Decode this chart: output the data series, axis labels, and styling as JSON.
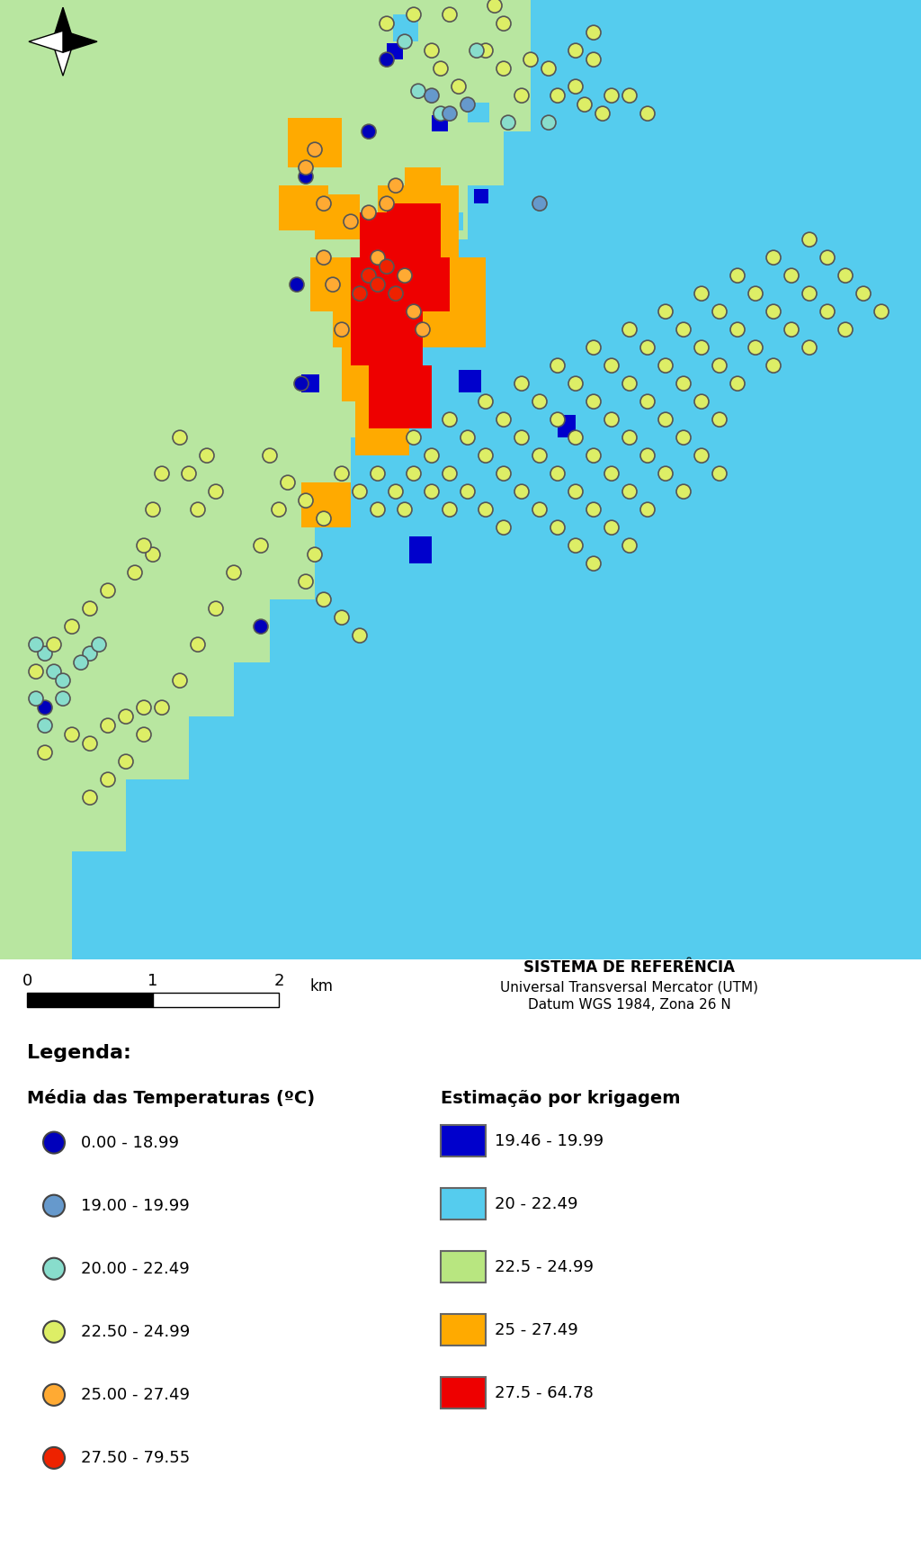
{
  "fig_width": 10.24,
  "fig_height": 17.2,
  "bg_color": "#b8e6a0",
  "map_bg": "#b8e6a0",
  "ocean_color": "#55ccee",
  "dark_blue_color": "#0000cc",
  "light_blue_color": "#55ccee",
  "light_green_color": "#b8e6a0",
  "orange_color": "#ffaa00",
  "red_color": "#ee0000",
  "scale_bar_text": [
    "0",
    "1",
    "2",
    "km"
  ],
  "ref_system_title": "SISTEMA DE REFERÊNCIA",
  "ref_line1": "Universal Transversal Mercator (UTM)",
  "ref_line2": "Datum WGS 1984, Zona 26 N",
  "legend_title": "Legenda:",
  "col1_title": "Média das Temperaturas (ºC)",
  "col2_title": "Estimação por krigagem",
  "dot_categories": [
    {
      "label": "0.00 - 18.99",
      "fill": "#0000bb",
      "edge": "#444444"
    },
    {
      "label": "19.00 - 19.99",
      "fill": "#6699cc",
      "edge": "#444444"
    },
    {
      "label": "20.00 - 22.49",
      "fill": "#88ddcc",
      "edge": "#444444"
    },
    {
      "label": "22.50 - 24.99",
      "fill": "#ddee66",
      "edge": "#444444"
    },
    {
      "label": "25.00 - 27.49",
      "fill": "#ffaa33",
      "edge": "#444444"
    },
    {
      "label": "27.50 - 79.55",
      "fill": "#ee2200",
      "edge": "#444444"
    }
  ],
  "box_categories": [
    {
      "label": "19.46 - 19.99",
      "fill": "#0000cc",
      "edge": "#666666"
    },
    {
      "label": "20 - 22.49",
      "fill": "#55ccee",
      "edge": "#666666"
    },
    {
      "label": "22.5 - 24.99",
      "fill": "#b8e680",
      "edge": "#666666"
    },
    {
      "label": "25 - 27.49",
      "fill": "#ffaa00",
      "edge": "#666666"
    },
    {
      "label": "27.5 - 64.78",
      "fill": "#ee0000",
      "edge": "#666666"
    }
  ]
}
